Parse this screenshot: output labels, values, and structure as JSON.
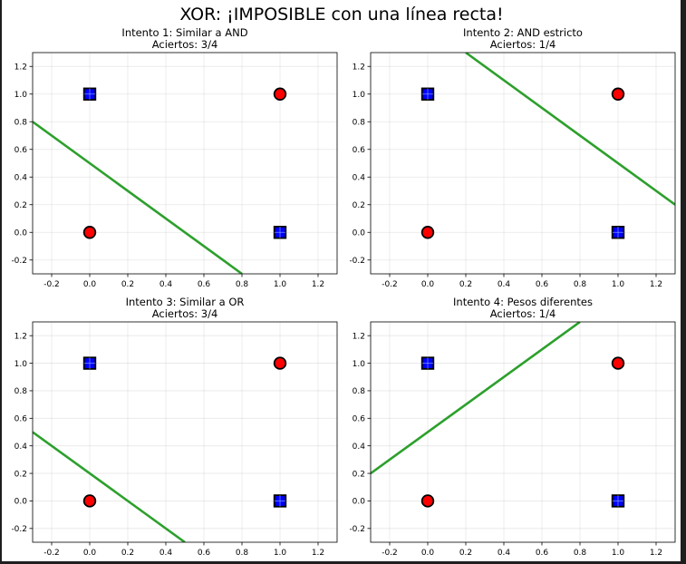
{
  "chart_data": {
    "type": "scatter",
    "title": "XOR: ¡IMPOSIBLE con una línea recta!",
    "xlim": [
      -0.3,
      1.3
    ],
    "ylim": [
      -0.3,
      1.3
    ],
    "x_ticks": [
      -0.2,
      0.0,
      0.2,
      0.4,
      0.6,
      0.8,
      1.0,
      1.2
    ],
    "y_ticks": [
      -0.2,
      0.0,
      0.2,
      0.4,
      0.6,
      0.8,
      1.0,
      1.2
    ],
    "grid": true,
    "colors": {
      "class0": "#ff0000",
      "class1": "#0000ff",
      "edge": "#000000",
      "boundary": "#2ca02c"
    },
    "points": [
      {
        "x": 0,
        "y": 0,
        "marker": "circle",
        "class": 0
      },
      {
        "x": 0,
        "y": 1,
        "marker": "square",
        "class": 1
      },
      {
        "x": 1,
        "y": 0,
        "marker": "square",
        "class": 1
      },
      {
        "x": 1,
        "y": 1,
        "marker": "circle",
        "class": 0
      }
    ],
    "subplots": [
      {
        "title": "Intento 1: Similar a AND",
        "subtitle": "Aciertos: 3/4",
        "line": [
          [
            -0.3,
            0.8
          ],
          [
            0.8,
            -0.3
          ]
        ]
      },
      {
        "title": "Intento 2: AND estricto",
        "subtitle": "Aciertos: 1/4",
        "line": [
          [
            0.2,
            1.3
          ],
          [
            1.3,
            0.2
          ]
        ]
      },
      {
        "title": "Intento 3: Similar a OR",
        "subtitle": "Aciertos: 3/4",
        "line": [
          [
            -0.3,
            0.5
          ],
          [
            0.5,
            -0.3
          ]
        ]
      },
      {
        "title": "Intento 4: Pesos diferentes",
        "subtitle": "Aciertos: 1/4",
        "line": [
          [
            -0.3,
            0.2
          ],
          [
            0.8,
            1.3
          ]
        ]
      }
    ]
  }
}
